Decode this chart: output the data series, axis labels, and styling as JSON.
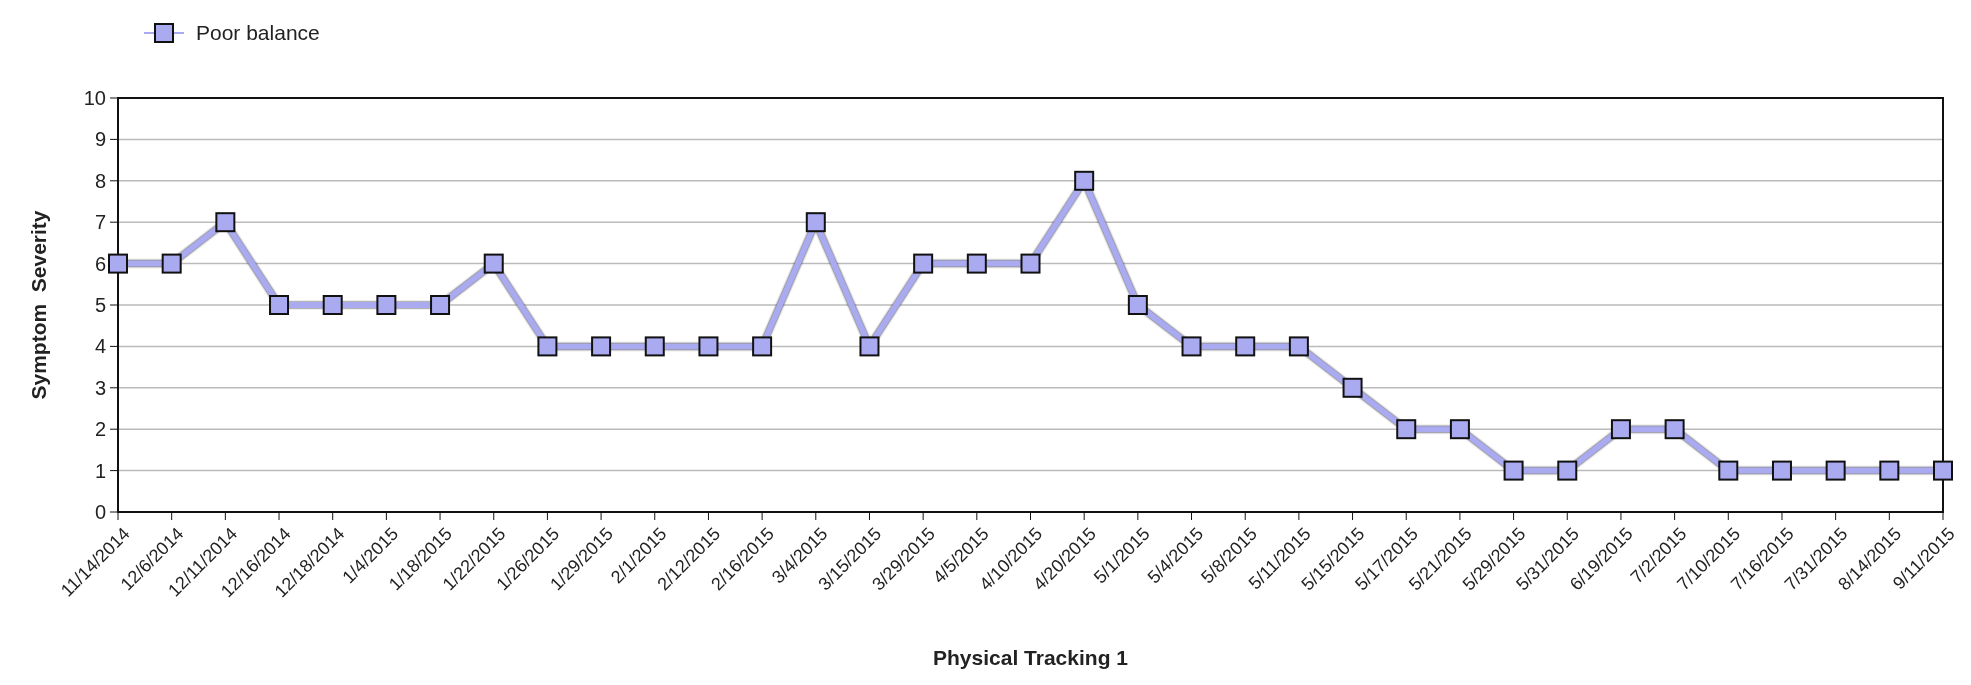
{
  "chart_data": {
    "type": "line",
    "xlabel": "Physical Tracking 1",
    "ylabel": "Symptom  Severity",
    "categories": [
      "11/14/2014",
      "12/6/2014",
      "12/11/2014",
      "12/16/2014",
      "12/18/2014",
      "1/4/2015",
      "1/18/2015",
      "1/22/2015",
      "1/26/2015",
      "1/29/2015",
      "2/1/2015",
      "2/12/2015",
      "2/16/2015",
      "3/4/2015",
      "3/15/2015",
      "3/29/2015",
      "4/5/2015",
      "4/10/2015",
      "4/20/2015",
      "5/1/2015",
      "5/4/2015",
      "5/8/2015",
      "5/11/2015",
      "5/15/2015",
      "5/17/2015",
      "5/21/2015",
      "5/29/2015",
      "5/31/2015",
      "6/19/2015",
      "7/2/2015",
      "7/10/2015",
      "7/16/2015",
      "7/31/2015",
      "8/14/2015",
      "9/11/2015"
    ],
    "series": [
      {
        "name": "Poor balance",
        "color": "#aaaaf0",
        "values": [
          6,
          6,
          7,
          5,
          5,
          5,
          5,
          6,
          4,
          4,
          4,
          4,
          4,
          7,
          4,
          6,
          6,
          6,
          8,
          5,
          4,
          4,
          4,
          3,
          2,
          2,
          1,
          1,
          2,
          2,
          1,
          1,
          1,
          1,
          1
        ]
      }
    ],
    "ylim": [
      0,
      10
    ],
    "yticks": [
      0,
      1,
      2,
      3,
      4,
      5,
      6,
      7,
      8,
      9,
      10
    ],
    "grid": "y",
    "legend": "top left",
    "marker": "square",
    "line_style": "solid"
  }
}
